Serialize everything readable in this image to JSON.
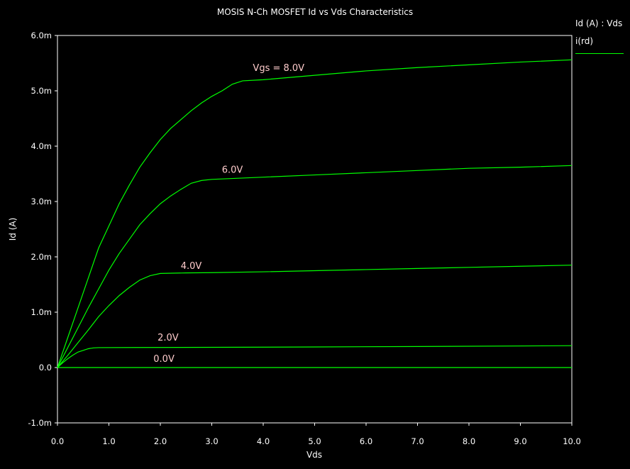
{
  "chart_data": {
    "type": "line",
    "title": "MOSIS N-Ch MOSFET Id vs Vds Characteristics",
    "xlabel": "Vds",
    "ylabel": "Id (A)",
    "xlim": [
      0,
      10
    ],
    "ylim": [
      -0.001,
      0.006
    ],
    "x_ticks": [
      "0.0",
      "1.0",
      "2.0",
      "3.0",
      "4.0",
      "5.0",
      "6.0",
      "7.0",
      "8.0",
      "9.0",
      "10.0"
    ],
    "y_ticks": [
      "-1.0m",
      "0.0",
      "1.0m",
      "2.0m",
      "3.0m",
      "4.0m",
      "5.0m",
      "6.0m"
    ],
    "grid": false,
    "legend_position": "top-right",
    "legend": {
      "title": "Id (A) : Vds",
      "items": [
        {
          "label": "i(rd)",
          "color": "#00ff00"
        }
      ]
    },
    "line_color": "#00ff00",
    "label_color": "#ffcccc",
    "series": [
      {
        "label": "0.0V",
        "points": [
          [
            0,
            0
          ],
          [
            10,
            0
          ]
        ]
      },
      {
        "label": "2.0V",
        "points": [
          [
            0,
            0
          ],
          [
            0.1,
            8.5e-05
          ],
          [
            0.2,
            0.00016
          ],
          [
            0.3,
            0.000225
          ],
          [
            0.4,
            0.00028
          ],
          [
            0.5,
            0.00031
          ],
          [
            0.6,
            0.00034
          ],
          [
            0.7,
            0.000355
          ],
          [
            0.8,
            0.00036
          ],
          [
            1.5,
            0.000362
          ],
          [
            3,
            0.000365
          ],
          [
            5,
            0.000372
          ],
          [
            7,
            0.00038
          ],
          [
            10,
            0.000395
          ]
        ]
      },
      {
        "label": "4.0V",
        "points": [
          [
            0,
            0
          ],
          [
            0.2,
            0.00022
          ],
          [
            0.4,
            0.00045
          ],
          [
            0.6,
            0.00068
          ],
          [
            0.8,
            0.00092
          ],
          [
            1.0,
            0.00112
          ],
          [
            1.2,
            0.0013
          ],
          [
            1.4,
            0.00145
          ],
          [
            1.6,
            0.00158
          ],
          [
            1.8,
            0.00166
          ],
          [
            2.0,
            0.0017
          ],
          [
            2.5,
            0.00171
          ],
          [
            3,
            0.001715
          ],
          [
            4,
            0.00173
          ],
          [
            5,
            0.00175
          ],
          [
            6,
            0.00177
          ],
          [
            7,
            0.00179
          ],
          [
            8,
            0.00181
          ],
          [
            9,
            0.00183
          ],
          [
            10,
            0.00185
          ]
        ]
      },
      {
        "label": "6.0V",
        "points": [
          [
            0,
            0
          ],
          [
            0.2,
            0.00036
          ],
          [
            0.4,
            0.00072
          ],
          [
            0.6,
            0.00108
          ],
          [
            0.8,
            0.00142
          ],
          [
            1.0,
            0.00176
          ],
          [
            1.2,
            0.00206
          ],
          [
            1.4,
            0.00232
          ],
          [
            1.6,
            0.00258
          ],
          [
            1.8,
            0.00278
          ],
          [
            2.0,
            0.00296
          ],
          [
            2.2,
            0.0031
          ],
          [
            2.4,
            0.00322
          ],
          [
            2.6,
            0.00333
          ],
          [
            2.8,
            0.00338
          ],
          [
            3.0,
            0.0034
          ],
          [
            4,
            0.00344
          ],
          [
            5,
            0.00348
          ],
          [
            6,
            0.00352
          ],
          [
            7,
            0.00356
          ],
          [
            8,
            0.0036
          ],
          [
            9,
            0.00362
          ],
          [
            10,
            0.00365
          ]
        ]
      },
      {
        "label": "Vgs = 8.0V",
        "points": [
          [
            0,
            0
          ],
          [
            0.2,
            0.00054
          ],
          [
            0.4,
            0.00108
          ],
          [
            0.6,
            0.00162
          ],
          [
            0.8,
            0.00216
          ],
          [
            1.0,
            0.00256
          ],
          [
            1.2,
            0.00296
          ],
          [
            1.4,
            0.0033
          ],
          [
            1.6,
            0.00362
          ],
          [
            1.8,
            0.00388
          ],
          [
            2.0,
            0.00412
          ],
          [
            2.2,
            0.00432
          ],
          [
            2.4,
            0.00448
          ],
          [
            2.6,
            0.00464
          ],
          [
            2.8,
            0.00478
          ],
          [
            3.0,
            0.0049
          ],
          [
            3.2,
            0.005
          ],
          [
            3.4,
            0.00512
          ],
          [
            3.6,
            0.00518
          ],
          [
            4,
            0.0052
          ],
          [
            5,
            0.00528
          ],
          [
            6,
            0.00536
          ],
          [
            7,
            0.00542
          ],
          [
            8,
            0.00547
          ],
          [
            9,
            0.00552
          ],
          [
            10,
            0.00556
          ]
        ]
      }
    ],
    "curve_labels": [
      {
        "text": "Vgs = 8.0V",
        "x": 4.3,
        "y": 0.00536
      },
      {
        "text": "6.0V",
        "x": 3.4,
        "y": 0.00352
      },
      {
        "text": "4.0V",
        "x": 2.6,
        "y": 0.00178
      },
      {
        "text": "2.0V",
        "x": 2.15,
        "y": 0.00049
      },
      {
        "text": "0.0V",
        "x": 2.07,
        "y": 0.0001
      }
    ]
  }
}
